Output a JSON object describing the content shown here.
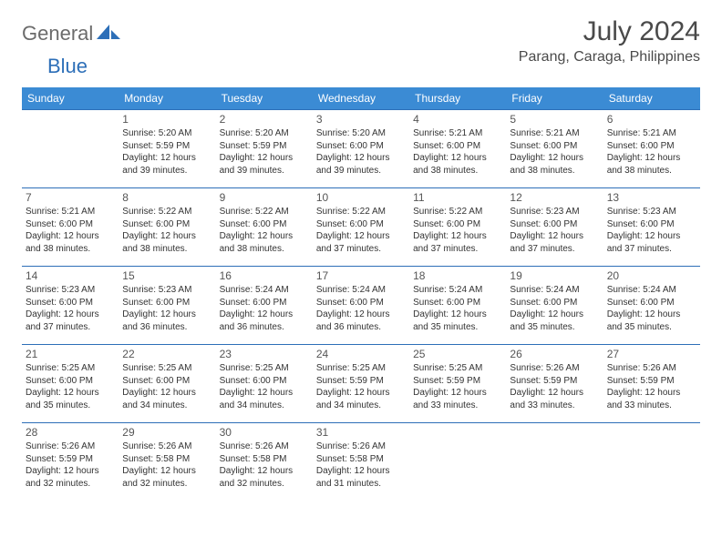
{
  "logo": {
    "part1": "General",
    "part2": "Blue"
  },
  "title": "July 2024",
  "location": "Parang, Caraga, Philippines",
  "headers": [
    "Sunday",
    "Monday",
    "Tuesday",
    "Wednesday",
    "Thursday",
    "Friday",
    "Saturday"
  ],
  "colors": {
    "header_bg": "#3b8bd4",
    "header_text": "#ffffff",
    "row_border": "#2d6fb8",
    "logo_gray": "#6b6b6b",
    "logo_blue": "#2d6fb8",
    "text": "#333333"
  },
  "weeks": [
    [
      null,
      {
        "n": "1",
        "sr": "Sunrise: 5:20 AM",
        "ss": "Sunset: 5:59 PM",
        "d1": "Daylight: 12 hours",
        "d2": "and 39 minutes."
      },
      {
        "n": "2",
        "sr": "Sunrise: 5:20 AM",
        "ss": "Sunset: 5:59 PM",
        "d1": "Daylight: 12 hours",
        "d2": "and 39 minutes."
      },
      {
        "n": "3",
        "sr": "Sunrise: 5:20 AM",
        "ss": "Sunset: 6:00 PM",
        "d1": "Daylight: 12 hours",
        "d2": "and 39 minutes."
      },
      {
        "n": "4",
        "sr": "Sunrise: 5:21 AM",
        "ss": "Sunset: 6:00 PM",
        "d1": "Daylight: 12 hours",
        "d2": "and 38 minutes."
      },
      {
        "n": "5",
        "sr": "Sunrise: 5:21 AM",
        "ss": "Sunset: 6:00 PM",
        "d1": "Daylight: 12 hours",
        "d2": "and 38 minutes."
      },
      {
        "n": "6",
        "sr": "Sunrise: 5:21 AM",
        "ss": "Sunset: 6:00 PM",
        "d1": "Daylight: 12 hours",
        "d2": "and 38 minutes."
      }
    ],
    [
      {
        "n": "7",
        "sr": "Sunrise: 5:21 AM",
        "ss": "Sunset: 6:00 PM",
        "d1": "Daylight: 12 hours",
        "d2": "and 38 minutes."
      },
      {
        "n": "8",
        "sr": "Sunrise: 5:22 AM",
        "ss": "Sunset: 6:00 PM",
        "d1": "Daylight: 12 hours",
        "d2": "and 38 minutes."
      },
      {
        "n": "9",
        "sr": "Sunrise: 5:22 AM",
        "ss": "Sunset: 6:00 PM",
        "d1": "Daylight: 12 hours",
        "d2": "and 38 minutes."
      },
      {
        "n": "10",
        "sr": "Sunrise: 5:22 AM",
        "ss": "Sunset: 6:00 PM",
        "d1": "Daylight: 12 hours",
        "d2": "and 37 minutes."
      },
      {
        "n": "11",
        "sr": "Sunrise: 5:22 AM",
        "ss": "Sunset: 6:00 PM",
        "d1": "Daylight: 12 hours",
        "d2": "and 37 minutes."
      },
      {
        "n": "12",
        "sr": "Sunrise: 5:23 AM",
        "ss": "Sunset: 6:00 PM",
        "d1": "Daylight: 12 hours",
        "d2": "and 37 minutes."
      },
      {
        "n": "13",
        "sr": "Sunrise: 5:23 AM",
        "ss": "Sunset: 6:00 PM",
        "d1": "Daylight: 12 hours",
        "d2": "and 37 minutes."
      }
    ],
    [
      {
        "n": "14",
        "sr": "Sunrise: 5:23 AM",
        "ss": "Sunset: 6:00 PM",
        "d1": "Daylight: 12 hours",
        "d2": "and 37 minutes."
      },
      {
        "n": "15",
        "sr": "Sunrise: 5:23 AM",
        "ss": "Sunset: 6:00 PM",
        "d1": "Daylight: 12 hours",
        "d2": "and 36 minutes."
      },
      {
        "n": "16",
        "sr": "Sunrise: 5:24 AM",
        "ss": "Sunset: 6:00 PM",
        "d1": "Daylight: 12 hours",
        "d2": "and 36 minutes."
      },
      {
        "n": "17",
        "sr": "Sunrise: 5:24 AM",
        "ss": "Sunset: 6:00 PM",
        "d1": "Daylight: 12 hours",
        "d2": "and 36 minutes."
      },
      {
        "n": "18",
        "sr": "Sunrise: 5:24 AM",
        "ss": "Sunset: 6:00 PM",
        "d1": "Daylight: 12 hours",
        "d2": "and 35 minutes."
      },
      {
        "n": "19",
        "sr": "Sunrise: 5:24 AM",
        "ss": "Sunset: 6:00 PM",
        "d1": "Daylight: 12 hours",
        "d2": "and 35 minutes."
      },
      {
        "n": "20",
        "sr": "Sunrise: 5:24 AM",
        "ss": "Sunset: 6:00 PM",
        "d1": "Daylight: 12 hours",
        "d2": "and 35 minutes."
      }
    ],
    [
      {
        "n": "21",
        "sr": "Sunrise: 5:25 AM",
        "ss": "Sunset: 6:00 PM",
        "d1": "Daylight: 12 hours",
        "d2": "and 35 minutes."
      },
      {
        "n": "22",
        "sr": "Sunrise: 5:25 AM",
        "ss": "Sunset: 6:00 PM",
        "d1": "Daylight: 12 hours",
        "d2": "and 34 minutes."
      },
      {
        "n": "23",
        "sr": "Sunrise: 5:25 AM",
        "ss": "Sunset: 6:00 PM",
        "d1": "Daylight: 12 hours",
        "d2": "and 34 minutes."
      },
      {
        "n": "24",
        "sr": "Sunrise: 5:25 AM",
        "ss": "Sunset: 5:59 PM",
        "d1": "Daylight: 12 hours",
        "d2": "and 34 minutes."
      },
      {
        "n": "25",
        "sr": "Sunrise: 5:25 AM",
        "ss": "Sunset: 5:59 PM",
        "d1": "Daylight: 12 hours",
        "d2": "and 33 minutes."
      },
      {
        "n": "26",
        "sr": "Sunrise: 5:26 AM",
        "ss": "Sunset: 5:59 PM",
        "d1": "Daylight: 12 hours",
        "d2": "and 33 minutes."
      },
      {
        "n": "27",
        "sr": "Sunrise: 5:26 AM",
        "ss": "Sunset: 5:59 PM",
        "d1": "Daylight: 12 hours",
        "d2": "and 33 minutes."
      }
    ],
    [
      {
        "n": "28",
        "sr": "Sunrise: 5:26 AM",
        "ss": "Sunset: 5:59 PM",
        "d1": "Daylight: 12 hours",
        "d2": "and 32 minutes."
      },
      {
        "n": "29",
        "sr": "Sunrise: 5:26 AM",
        "ss": "Sunset: 5:58 PM",
        "d1": "Daylight: 12 hours",
        "d2": "and 32 minutes."
      },
      {
        "n": "30",
        "sr": "Sunrise: 5:26 AM",
        "ss": "Sunset: 5:58 PM",
        "d1": "Daylight: 12 hours",
        "d2": "and 32 minutes."
      },
      {
        "n": "31",
        "sr": "Sunrise: 5:26 AM",
        "ss": "Sunset: 5:58 PM",
        "d1": "Daylight: 12 hours",
        "d2": "and 31 minutes."
      },
      null,
      null,
      null
    ]
  ]
}
